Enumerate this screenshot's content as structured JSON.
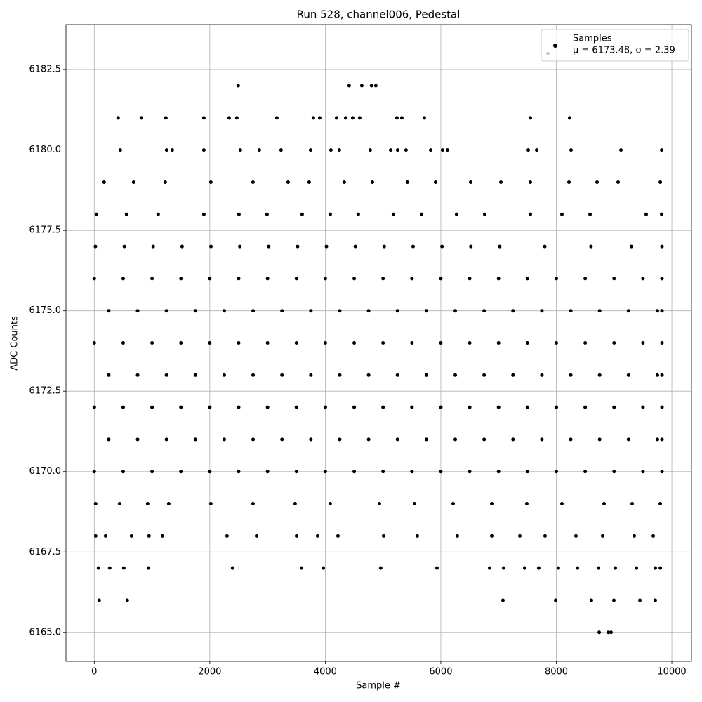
{
  "chart_data": {
    "type": "scatter",
    "title": "Run 528, channel006, Pedestal",
    "x_label": "Sample #",
    "y_label": "ADC Counts",
    "legend_subtitle": "μ = 6173.48, σ = 2.39",
    "legend_loc": "upper right",
    "grid": true,
    "xlim": [
      -490,
      10340
    ],
    "ylim": [
      6164.1,
      6183.9
    ],
    "xticks": [
      0,
      2000,
      4000,
      6000,
      8000,
      10000
    ],
    "yticks": [
      {
        "value": 6165,
        "label": "6165.0"
      },
      6167.5,
      {
        "value": 6170,
        "label": "6170.0"
      },
      6172.5,
      {
        "value": 6175,
        "label": "6175.0"
      },
      6177.5,
      {
        "value": 6180,
        "label": "6180.0"
      },
      6182.5
    ],
    "x": [
      7854,
      2492,
      4413,
      4632,
      4800,
      4875,
      413,
      815,
      1240,
      1897,
      2334,
      2468,
      3161,
      3793,
      3903,
      4195,
      4353,
      4474,
      4596,
      5240,
      5325,
      5714,
      7550,
      8231,
      450,
      1252,
      1350,
      1897,
      2529,
      2857,
      3234,
      3745,
      4097,
      4243,
      4778,
      5131,
      5252,
      5398,
      5824,
      6030,
      6115,
      7514,
      7660,
      8255,
      9119,
      9824,
      170,
      681,
      1228,
      2018,
      2748,
      3356,
      3720,
      4328,
      4815,
      5422,
      5909,
      6517,
      7040,
      7550,
      8219,
      8705,
      9070,
      9800,
      36,
      559,
      1106,
      1897,
      2505,
      2991,
      3599,
      4085,
      4571,
      5179,
      5666,
      6274,
      6760,
      7550,
      8097,
      8584,
      9556,
      9824,
      20,
      520,
      1020,
      1520,
      2020,
      2520,
      3020,
      3520,
      4020,
      4520,
      5020,
      5520,
      6020,
      6520,
      7020,
      7800,
      8600,
      9300,
      9830,
      0,
      500,
      1000,
      1500,
      2000,
      2500,
      3000,
      3500,
      4000,
      4500,
      5000,
      5500,
      6000,
      6500,
      7000,
      7500,
      8000,
      8500,
      9000,
      9500,
      9830,
      250,
      750,
      1250,
      1750,
      2250,
      2750,
      3250,
      3750,
      4250,
      4750,
      5250,
      5750,
      6250,
      6750,
      7250,
      7750,
      8250,
      8750,
      9250,
      9750,
      9830,
      0,
      500,
      1000,
      1500,
      2000,
      2500,
      3000,
      3500,
      4000,
      4500,
      5000,
      5500,
      6000,
      6500,
      7000,
      7500,
      8000,
      8500,
      9000,
      9500,
      9830,
      250,
      750,
      1250,
      1750,
      2250,
      2750,
      3250,
      3750,
      4250,
      4750,
      5250,
      5750,
      6250,
      6750,
      7250,
      7750,
      8250,
      8750,
      9250,
      9750,
      9830,
      0,
      500,
      1000,
      1500,
      2000,
      2500,
      3000,
      3500,
      4000,
      4500,
      5000,
      5500,
      6000,
      6500,
      7000,
      7500,
      8000,
      8500,
      9000,
      9500,
      9830,
      250,
      750,
      1250,
      1750,
      2250,
      2750,
      3250,
      3750,
      4250,
      4750,
      5250,
      5750,
      6250,
      6750,
      7250,
      7750,
      8250,
      8750,
      9250,
      9750,
      9830,
      0,
      500,
      1000,
      1500,
      2000,
      2500,
      3000,
      3500,
      4000,
      4500,
      5000,
      5500,
      6000,
      6500,
      7000,
      7500,
      8000,
      8500,
      9000,
      9500,
      9830,
      24,
      438,
      924,
      1289,
      2018,
      2748,
      3477,
      4085,
      4936,
      5544,
      6213,
      6882,
      7489,
      8097,
      8827,
      9313,
      9800,
      24,
      195,
      644,
      948,
      1179,
      2298,
      2809,
      3502,
      3866,
      4219,
      5009,
      5593,
      6286,
      6882,
      7368,
      7805,
      8340,
      8802,
      9350,
      9678,
      73,
      267,
      511,
      936,
      2395,
      3587,
      3964,
      4960,
      5933,
      6845,
      7088,
      7453,
      7696,
      8036,
      8365,
      8730,
      9021,
      9386,
      9714,
      9800,
      85,
      571,
      7076,
      7988,
      8608,
      8997,
      9447,
      9714,
      8742,
      8900,
      8948
    ],
    "series": [
      {
        "name": "Samples",
        "color": "#000000",
        "values": [
          6183,
          6182,
          6182,
          6182,
          6182,
          6182,
          6181,
          6181,
          6181,
          6181,
          6181,
          6181,
          6181,
          6181,
          6181,
          6181,
          6181,
          6181,
          6181,
          6181,
          6181,
          6181,
          6181,
          6181,
          6180,
          6180,
          6180,
          6180,
          6180,
          6180,
          6180,
          6180,
          6180,
          6180,
          6180,
          6180,
          6180,
          6180,
          6180,
          6180,
          6180,
          6180,
          6180,
          6180,
          6180,
          6180,
          6179,
          6179,
          6179,
          6179,
          6179,
          6179,
          6179,
          6179,
          6179,
          6179,
          6179,
          6179,
          6179,
          6179,
          6179,
          6179,
          6179,
          6179,
          6178,
          6178,
          6178,
          6178,
          6178,
          6178,
          6178,
          6178,
          6178,
          6178,
          6178,
          6178,
          6178,
          6178,
          6178,
          6178,
          6178,
          6178,
          6177,
          6177,
          6177,
          6177,
          6177,
          6177,
          6177,
          6177,
          6177,
          6177,
          6177,
          6177,
          6177,
          6177,
          6177,
          6177,
          6177,
          6177,
          6177,
          6176,
          6176,
          6176,
          6176,
          6176,
          6176,
          6176,
          6176,
          6176,
          6176,
          6176,
          6176,
          6176,
          6176,
          6176,
          6176,
          6176,
          6176,
          6176,
          6176,
          6176,
          6175,
          6175,
          6175,
          6175,
          6175,
          6175,
          6175,
          6175,
          6175,
          6175,
          6175,
          6175,
          6175,
          6175,
          6175,
          6175,
          6175,
          6175,
          6175,
          6175,
          6175,
          6174,
          6174,
          6174,
          6174,
          6174,
          6174,
          6174,
          6174,
          6174,
          6174,
          6174,
          6174,
          6174,
          6174,
          6174,
          6174,
          6174,
          6174,
          6174,
          6174,
          6174,
          6173,
          6173,
          6173,
          6173,
          6173,
          6173,
          6173,
          6173,
          6173,
          6173,
          6173,
          6173,
          6173,
          6173,
          6173,
          6173,
          6173,
          6173,
          6173,
          6173,
          6173,
          6172,
          6172,
          6172,
          6172,
          6172,
          6172,
          6172,
          6172,
          6172,
          6172,
          6172,
          6172,
          6172,
          6172,
          6172,
          6172,
          6172,
          6172,
          6172,
          6172,
          6172,
          6171,
          6171,
          6171,
          6171,
          6171,
          6171,
          6171,
          6171,
          6171,
          6171,
          6171,
          6171,
          6171,
          6171,
          6171,
          6171,
          6171,
          6171,
          6171,
          6171,
          6171,
          6170,
          6170,
          6170,
          6170,
          6170,
          6170,
          6170,
          6170,
          6170,
          6170,
          6170,
          6170,
          6170,
          6170,
          6170,
          6170,
          6170,
          6170,
          6170,
          6170,
          6170,
          6169,
          6169,
          6169,
          6169,
          6169,
          6169,
          6169,
          6169,
          6169,
          6169,
          6169,
          6169,
          6169,
          6169,
          6169,
          6169,
          6169,
          6168,
          6168,
          6168,
          6168,
          6168,
          6168,
          6168,
          6168,
          6168,
          6168,
          6168,
          6168,
          6168,
          6168,
          6168,
          6168,
          6168,
          6168,
          6168,
          6168,
          6167,
          6167,
          6167,
          6167,
          6167,
          6167,
          6167,
          6167,
          6167,
          6167,
          6167,
          6167,
          6167,
          6167,
          6167,
          6167,
          6167,
          6167,
          6167,
          6167,
          6166,
          6166,
          6166,
          6166,
          6166,
          6166,
          6166,
          6166,
          6165,
          6165,
          6165
        ]
      }
    ]
  }
}
